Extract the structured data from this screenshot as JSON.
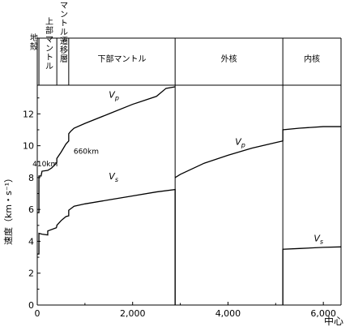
{
  "chart_data": {
    "type": "line",
    "title": "",
    "xlabel": "中心",
    "ylabel": "速度（km・s⁻¹）",
    "xlim": [
      0,
      6371
    ],
    "ylim": [
      0,
      13.8
    ],
    "xticks": [
      0,
      2000,
      4000,
      6000
    ],
    "xtick_labels": [
      "0",
      "2,000",
      "4,000",
      "6,000"
    ],
    "yticks": [
      0,
      2,
      4,
      6,
      8,
      10,
      12
    ],
    "ytick_labels": [
      "0",
      "2",
      "4",
      "6",
      "8",
      "10",
      "12"
    ],
    "grid": false,
    "legend": "none",
    "zone_boundaries": [
      35,
      410,
      660,
      2891,
      5150,
      6371
    ],
    "zones": [
      {
        "label": "地殻",
        "x0": 0,
        "x1": 35,
        "vertical": true
      },
      {
        "label": "上部マントル",
        "x0": 35,
        "x1": 410,
        "vertical": true
      },
      {
        "label": "マントル遷移層",
        "x0": 410,
        "x1": 660,
        "vertical": true
      },
      {
        "label": "下部マントル",
        "x0": 660,
        "x1": 2891,
        "vertical": false
      },
      {
        "label": "外核",
        "x0": 2891,
        "x1": 5150,
        "vertical": false
      },
      {
        "label": "内核",
        "x0": 5150,
        "x1": 6371,
        "vertical": false
      }
    ],
    "annotations": [
      {
        "text": "660km",
        "x": 660,
        "y": 10.1
      },
      {
        "text": "410km",
        "x": 410,
        "y": 8.9
      }
    ],
    "series": [
      {
        "name": "Vp",
        "label_main": "V",
        "label_sub": "p",
        "segments": [
          [
            [
              0,
              5.8
            ],
            [
              35,
              5.8
            ],
            [
              35,
              8.1
            ],
            [
              80,
              8.1
            ],
            [
              100,
              8.4
            ],
            [
              220,
              8.45
            ],
            [
              300,
              8.6
            ],
            [
              400,
              8.9
            ],
            [
              410,
              8.95
            ],
            [
              410,
              9.2
            ],
            [
              500,
              9.6
            ],
            [
              600,
              10.1
            ],
            [
              660,
              10.3
            ],
            [
              660,
              10.75
            ],
            [
              700,
              10.9
            ],
            [
              771,
              11.1
            ],
            [
              1000,
              11.4
            ],
            [
              1500,
              12.0
            ],
            [
              2000,
              12.6
            ],
            [
              2500,
              13.1
            ],
            [
              2700,
              13.6
            ],
            [
              2891,
              13.7
            ]
          ],
          [
            [
              2891,
              8.0
            ],
            [
              3000,
              8.2
            ],
            [
              3500,
              8.9
            ],
            [
              4000,
              9.4
            ],
            [
              4500,
              9.85
            ],
            [
              5000,
              10.2
            ],
            [
              5150,
              10.3
            ],
            [
              5150,
              11.0
            ],
            [
              5500,
              11.1
            ],
            [
              6000,
              11.2
            ],
            [
              6371,
              11.2
            ]
          ]
        ],
        "label_at": {
          "x": 1500,
          "y": 13.0
        },
        "label_at_2": {
          "x": 4150,
          "y": 10.05
        }
      },
      {
        "name": "Vs",
        "label_main": "V",
        "label_sub": "s",
        "segments": [
          [
            [
              0,
              3.2
            ],
            [
              35,
              3.2
            ],
            [
              35,
              4.5
            ],
            [
              100,
              4.45
            ],
            [
              220,
              4.4
            ],
            [
              220,
              4.65
            ],
            [
              400,
              4.85
            ],
            [
              410,
              4.95
            ],
            [
              410,
              5.0
            ],
            [
              500,
              5.3
            ],
            [
              600,
              5.55
            ],
            [
              660,
              5.6
            ],
            [
              660,
              5.95
            ],
            [
              771,
              6.2
            ],
            [
              1000,
              6.35
            ],
            [
              1500,
              6.6
            ],
            [
              2000,
              6.85
            ],
            [
              2500,
              7.1
            ],
            [
              2891,
              7.25
            ],
            [
              2891,
              0
            ]
          ],
          [
            [
              5150,
              0
            ],
            [
              5150,
              3.5
            ],
            [
              5500,
              3.55
            ],
            [
              6000,
              3.62
            ],
            [
              6371,
              3.65
            ]
          ]
        ],
        "label_at": {
          "x": 1500,
          "y": 7.9
        },
        "label_at_2": {
          "x": 5800,
          "y": 4.0
        }
      }
    ]
  }
}
